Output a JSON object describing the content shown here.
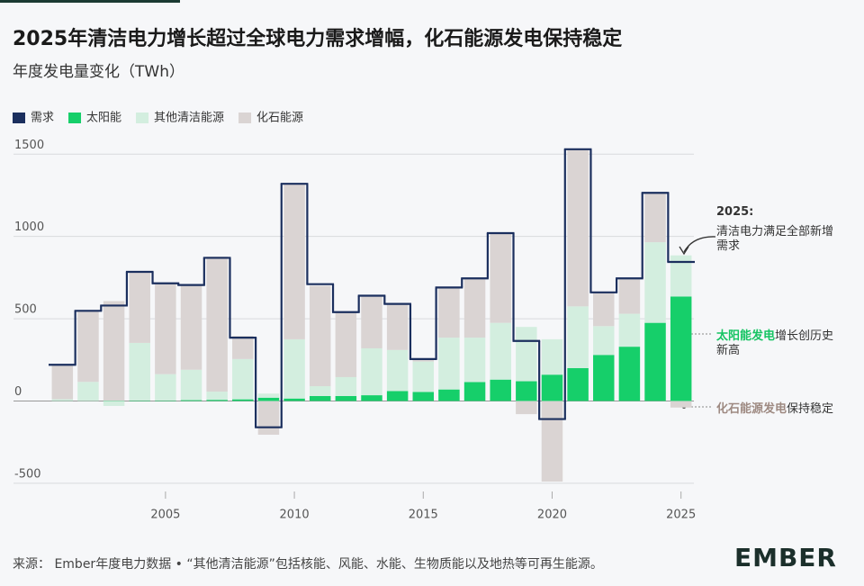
{
  "chart_data": {
    "type": "bar",
    "stacked": true,
    "title": "2025年清洁电力增长超过全球电力需求增幅，化石能源发电保持稳定",
    "subtitle": "年度发电量变化（TWh）",
    "x": [
      2001,
      2002,
      2003,
      2004,
      2005,
      2006,
      2007,
      2008,
      2009,
      2010,
      2011,
      2012,
      2013,
      2014,
      2015,
      2016,
      2017,
      2018,
      2019,
      2020,
      2021,
      2022,
      2023,
      2024,
      2025
    ],
    "xlim": [
      2000.5,
      2025.5
    ],
    "xticks": [
      2005,
      2010,
      2015,
      2020,
      2025
    ],
    "ylim": [
      -550,
      1600
    ],
    "yticks": [
      -500,
      0,
      500,
      1000,
      1500
    ],
    "grid": true,
    "legend": "top-left",
    "series": [
      {
        "name": "需求",
        "type": "step",
        "color": "#1b2f5e",
        "values": [
          220,
          548,
          580,
          785,
          715,
          705,
          870,
          385,
          -160,
          1320,
          710,
          540,
          640,
          590,
          255,
          690,
          745,
          1020,
          365,
          -110,
          1530,
          660,
          745,
          1265,
          845
        ]
      },
      {
        "name": "太阳能",
        "color": "#16cf6a",
        "values": [
          1,
          1,
          2,
          3,
          3,
          5,
          7,
          10,
          20,
          15,
          30,
          30,
          35,
          60,
          55,
          70,
          115,
          130,
          120,
          160,
          200,
          280,
          330,
          475,
          635
        ]
      },
      {
        "name": "其他清洁能源",
        "color": "#d3eedf",
        "values": [
          10,
          115,
          -30,
          350,
          160,
          185,
          50,
          245,
          25,
          360,
          60,
          115,
          285,
          250,
          185,
          315,
          270,
          345,
          330,
          215,
          375,
          175,
          200,
          490,
          250
        ]
      },
      {
        "name": "化石能源",
        "color": "#dad4d3",
        "values": [
          210,
          430,
          605,
          435,
          555,
          520,
          820,
          140,
          -205,
          945,
          610,
          400,
          320,
          280,
          10,
          300,
          365,
          545,
          -80,
          -490,
          955,
          205,
          210,
          300,
          -40
        ]
      }
    ],
    "annotations": [
      {
        "text": "2025:"
      },
      {
        "text": "清洁电力满足全部新增需求"
      },
      {
        "highlight": "太阳能发电",
        "text": "增长创历史新高",
        "color": "#16c463"
      },
      {
        "highlight": "化石能源发电",
        "text": "保持稳定",
        "color": "#9e8a82"
      }
    ],
    "source": "来源： Ember年度电力数据 • “其他清洁能源”包括核能、风能、水能、生物质能以及地热等可再生能源。",
    "logo": "EMBER"
  }
}
